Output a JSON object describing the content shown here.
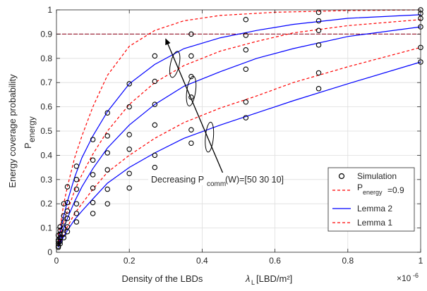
{
  "chart_data": {
    "type": "line",
    "xlabel": "Density of the LBDs",
    "xlabel_symbol": "λ",
    "xlabel_symbol_sub": "L",
    "xlabel_unit": "[LBD/m²]",
    "x_multiplier": "×10",
    "x_multiplier_exp": "-6",
    "ylabel_line1": "Energy coverage probability",
    "ylabel_line2_main": "P",
    "ylabel_line2_sub": "energy",
    "xlim": [
      0,
      1
    ],
    "ylim": [
      0,
      1
    ],
    "x_ticks": [
      0,
      0.2,
      0.4,
      0.6,
      0.8,
      1
    ],
    "x_tick_labels": [
      "0",
      "0.2",
      "0.4",
      "0.6",
      "0.8",
      "1"
    ],
    "y_ticks": [
      0,
      0.1,
      0.2,
      0.3,
      0.4,
      0.5,
      0.6,
      0.7,
      0.8,
      0.9,
      1
    ],
    "y_tick_labels": [
      "0",
      "0.1",
      "0.2",
      "0.3",
      "0.4",
      "0.5",
      "0.6",
      "0.7",
      "0.8",
      "0.9",
      "1"
    ],
    "grid": true,
    "legend_position": "bottom-right",
    "legend": [
      {
        "key": "simulation",
        "label": "Simulation"
      },
      {
        "key": "threshold",
        "label_main": "P",
        "label_sub": "energy",
        "label_tail": "=0.9"
      },
      {
        "key": "lemma2",
        "label": "Lemma 2"
      },
      {
        "key": "lemma1",
        "label": "Lemma 1"
      }
    ],
    "threshold": 0.9,
    "colors": {
      "lemma1": "#ff0000",
      "lemma2": "#0000ff",
      "threshold": "#9e2a3c",
      "simulation": "#000000",
      "grid": "#dedede",
      "axis": "#262626"
    },
    "annotation": {
      "prefix": "Decreasing P",
      "sub": "comm",
      "suffix": " (W)=[50 30 10]"
    },
    "series": [
      {
        "key": "lemma1",
        "values": [
          [
            0.005,
            0.07
          ],
          [
            0.01,
            0.105
          ],
          [
            0.02,
            0.2
          ],
          [
            0.03,
            0.27
          ],
          [
            0.05,
            0.39
          ],
          [
            0.07,
            0.48
          ],
          [
            0.1,
            0.6
          ],
          [
            0.14,
            0.73
          ],
          [
            0.2,
            0.85
          ],
          [
            0.27,
            0.915
          ],
          [
            0.35,
            0.955
          ],
          [
            0.45,
            0.977
          ],
          [
            0.6,
            0.99
          ],
          [
            0.8,
            0.997
          ],
          [
            1.0,
            1.0
          ]
        ]
      },
      {
        "key": "lemma2",
        "values": [
          [
            0.005,
            0.045
          ],
          [
            0.01,
            0.085
          ],
          [
            0.02,
            0.15
          ],
          [
            0.03,
            0.21
          ],
          [
            0.05,
            0.31
          ],
          [
            0.07,
            0.39
          ],
          [
            0.1,
            0.48
          ],
          [
            0.14,
            0.58
          ],
          [
            0.2,
            0.695
          ],
          [
            0.27,
            0.775
          ],
          [
            0.35,
            0.84
          ],
          [
            0.45,
            0.885
          ],
          [
            0.55,
            0.915
          ],
          [
            0.65,
            0.94
          ],
          [
            0.8,
            0.965
          ],
          [
            1.0,
            0.98
          ]
        ]
      },
      {
        "key": "lemma1",
        "values": [
          [
            0.005,
            0.04
          ],
          [
            0.01,
            0.07
          ],
          [
            0.02,
            0.125
          ],
          [
            0.03,
            0.17
          ],
          [
            0.05,
            0.255
          ],
          [
            0.07,
            0.32
          ],
          [
            0.1,
            0.405
          ],
          [
            0.14,
            0.5
          ],
          [
            0.2,
            0.61
          ],
          [
            0.27,
            0.7
          ],
          [
            0.35,
            0.77
          ],
          [
            0.45,
            0.83
          ],
          [
            0.55,
            0.87
          ],
          [
            0.65,
            0.905
          ],
          [
            0.8,
            0.935
          ],
          [
            1.0,
            0.96
          ]
        ]
      },
      {
        "key": "lemma2",
        "values": [
          [
            0.005,
            0.03
          ],
          [
            0.01,
            0.055
          ],
          [
            0.02,
            0.1
          ],
          [
            0.03,
            0.14
          ],
          [
            0.05,
            0.21
          ],
          [
            0.07,
            0.27
          ],
          [
            0.1,
            0.345
          ],
          [
            0.14,
            0.43
          ],
          [
            0.2,
            0.525
          ],
          [
            0.27,
            0.61
          ],
          [
            0.35,
            0.685
          ],
          [
            0.45,
            0.745
          ],
          [
            0.55,
            0.8
          ],
          [
            0.65,
            0.84
          ],
          [
            0.8,
            0.89
          ],
          [
            1.0,
            0.93
          ]
        ]
      },
      {
        "key": "lemma1",
        "values": [
          [
            0.005,
            0.025
          ],
          [
            0.01,
            0.04
          ],
          [
            0.02,
            0.075
          ],
          [
            0.03,
            0.105
          ],
          [
            0.05,
            0.16
          ],
          [
            0.07,
            0.2
          ],
          [
            0.1,
            0.26
          ],
          [
            0.14,
            0.33
          ],
          [
            0.2,
            0.4
          ],
          [
            0.27,
            0.47
          ],
          [
            0.35,
            0.535
          ],
          [
            0.45,
            0.595
          ],
          [
            0.55,
            0.645
          ],
          [
            0.65,
            0.7
          ],
          [
            0.8,
            0.765
          ],
          [
            1.0,
            0.845
          ]
        ]
      },
      {
        "key": "lemma2",
        "values": [
          [
            0.005,
            0.02
          ],
          [
            0.01,
            0.035
          ],
          [
            0.02,
            0.065
          ],
          [
            0.03,
            0.09
          ],
          [
            0.05,
            0.135
          ],
          [
            0.07,
            0.17
          ],
          [
            0.1,
            0.22
          ],
          [
            0.14,
            0.285
          ],
          [
            0.2,
            0.35
          ],
          [
            0.27,
            0.41
          ],
          [
            0.35,
            0.47
          ],
          [
            0.45,
            0.525
          ],
          [
            0.55,
            0.575
          ],
          [
            0.65,
            0.625
          ],
          [
            0.8,
            0.695
          ],
          [
            1.0,
            0.785
          ]
        ]
      }
    ],
    "simulation_points": [
      [
        0.005,
        0.07
      ],
      [
        0.01,
        0.105
      ],
      [
        0.02,
        0.2
      ],
      [
        0.03,
        0.27
      ],
      [
        0.055,
        0.355
      ],
      [
        0.1,
        0.465
      ],
      [
        0.14,
        0.575
      ],
      [
        0.2,
        0.695
      ],
      [
        0.27,
        0.81
      ],
      [
        0.37,
        0.9
      ],
      [
        0.52,
        0.96
      ],
      [
        0.72,
        0.99
      ],
      [
        1.0,
        1.0
      ],
      [
        0.005,
        0.05
      ],
      [
        0.01,
        0.09
      ],
      [
        0.02,
        0.15
      ],
      [
        0.03,
        0.205
      ],
      [
        0.055,
        0.3
      ],
      [
        0.1,
        0.38
      ],
      [
        0.14,
        0.48
      ],
      [
        0.2,
        0.6
      ],
      [
        0.27,
        0.705
      ],
      [
        0.37,
        0.81
      ],
      [
        0.52,
        0.895
      ],
      [
        0.72,
        0.955
      ],
      [
        1.0,
        0.985
      ],
      [
        0.005,
        0.045
      ],
      [
        0.01,
        0.075
      ],
      [
        0.02,
        0.125
      ],
      [
        0.03,
        0.17
      ],
      [
        0.055,
        0.26
      ],
      [
        0.1,
        0.32
      ],
      [
        0.14,
        0.41
      ],
      [
        0.2,
        0.485
      ],
      [
        0.27,
        0.61
      ],
      [
        0.37,
        0.725
      ],
      [
        0.52,
        0.835
      ],
      [
        0.72,
        0.915
      ],
      [
        1.0,
        0.965
      ],
      [
        0.005,
        0.035
      ],
      [
        0.01,
        0.06
      ],
      [
        0.02,
        0.1
      ],
      [
        0.03,
        0.14
      ],
      [
        0.055,
        0.2
      ],
      [
        0.1,
        0.265
      ],
      [
        0.14,
        0.34
      ],
      [
        0.2,
        0.425
      ],
      [
        0.27,
        0.525
      ],
      [
        0.37,
        0.64
      ],
      [
        0.52,
        0.755
      ],
      [
        0.72,
        0.855
      ],
      [
        1.0,
        0.93
      ],
      [
        0.005,
        0.025
      ],
      [
        0.01,
        0.045
      ],
      [
        0.02,
        0.075
      ],
      [
        0.03,
        0.105
      ],
      [
        0.055,
        0.16
      ],
      [
        0.1,
        0.205
      ],
      [
        0.14,
        0.26
      ],
      [
        0.2,
        0.325
      ],
      [
        0.27,
        0.4
      ],
      [
        0.37,
        0.505
      ],
      [
        0.52,
        0.62
      ],
      [
        0.72,
        0.74
      ],
      [
        1.0,
        0.845
      ],
      [
        0.005,
        0.02
      ],
      [
        0.01,
        0.035
      ],
      [
        0.02,
        0.06
      ],
      [
        0.03,
        0.085
      ],
      [
        0.055,
        0.125
      ],
      [
        0.1,
        0.16
      ],
      [
        0.14,
        0.2
      ],
      [
        0.2,
        0.265
      ],
      [
        0.27,
        0.35
      ],
      [
        0.37,
        0.45
      ],
      [
        0.52,
        0.555
      ],
      [
        0.72,
        0.675
      ],
      [
        1.0,
        0.785
      ]
    ],
    "ellipses": [
      {
        "cx": 0.325,
        "cy": 0.775,
        "rx": 0.012,
        "ry": 0.055,
        "angle": 12
      },
      {
        "cx": 0.37,
        "cy": 0.665,
        "rx": 0.012,
        "ry": 0.062,
        "angle": 8
      },
      {
        "cx": 0.42,
        "cy": 0.475,
        "rx": 0.011,
        "ry": 0.062,
        "angle": 5
      }
    ],
    "arrow": {
      "from": [
        0.47,
        0.28
      ],
      "to": [
        0.3,
        0.88
      ]
    }
  }
}
